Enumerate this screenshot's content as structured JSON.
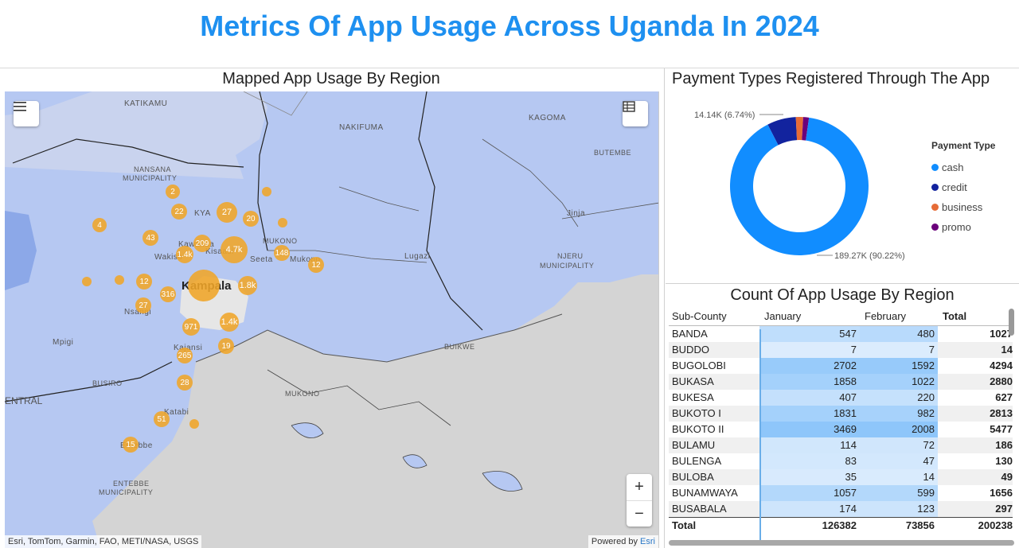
{
  "dashboard_title": "Metrics Of App Usage Across Uganda In 2024",
  "map": {
    "title": "Mapped App Usage By Region",
    "attribution": "Esri, TomTom, Garmin, FAO, METI/NASA, USGS",
    "powered_by": "Powered by",
    "powered_by_brand": "Esri",
    "zoom_in": "+",
    "zoom_out": "−",
    "labels": [
      "KATIKAMU",
      "NAKIFUMA",
      "KAGOMA",
      "BUTEMBE",
      "NANSANA",
      "MUNICIPALITY",
      "KYA",
      "Kawanda",
      "Wakiso",
      "Kisaasi",
      "Seeta",
      "MUKONO",
      "Mukono",
      "Kampala",
      "Nsangi",
      "Mpigi",
      "Kajansi",
      "Lugazi",
      "Jinja",
      "NJERU",
      "MUNICIPALITY",
      "BUIKWE",
      "BUSIRO",
      "MUKONO",
      "ENTRAL",
      "Katabi",
      "Entebbe",
      "ENTEBBE",
      "MUNICIPALITY"
    ],
    "clusters": [
      {
        "label": "2"
      },
      {
        "label": ""
      },
      {
        "label": "22"
      },
      {
        "label": "27"
      },
      {
        "label": "20"
      },
      {
        "label": ""
      },
      {
        "label": "4"
      },
      {
        "label": "43"
      },
      {
        "label": "209"
      },
      {
        "label": "4.7k"
      },
      {
        "label": "1.4k"
      },
      {
        "label": "148"
      },
      {
        "label": "12"
      },
      {
        "label": ""
      },
      {
        "label": ""
      },
      {
        "label": "12"
      },
      {
        "label": ""
      },
      {
        "label": "1.8k"
      },
      {
        "label": "316"
      },
      {
        "label": "27"
      },
      {
        "label": "1.4k"
      },
      {
        "label": "971"
      },
      {
        "label": "19"
      },
      {
        "label": "265"
      },
      {
        "label": "28"
      },
      {
        "label": "51"
      },
      {
        "label": ""
      },
      {
        "label": "15"
      }
    ]
  },
  "payment": {
    "title": "Payment Types Registered Through The App",
    "legend_title": "Payment Type",
    "label_small": "14.14K (6.74%)",
    "label_large": "189.27K (90.22%)",
    "colors": {
      "cash": "#118dff",
      "credit": "#12239e",
      "business": "#e66c37",
      "promo": "#6b007b"
    },
    "chart_data": {
      "type": "pie",
      "categories": [
        "cash",
        "credit",
        "business",
        "promo"
      ],
      "values": [
        189270,
        14140,
        3560,
        2830
      ]
    }
  },
  "table": {
    "title": "Count Of App Usage By Region",
    "headers": [
      "Sub-County",
      "January",
      "February",
      "Total"
    ],
    "rows": [
      {
        "name": "BANDA",
        "jan": "547",
        "feb": "480",
        "total": "1027"
      },
      {
        "name": "BUDDO",
        "jan": "7",
        "feb": "7",
        "total": "14"
      },
      {
        "name": "BUGOLOBI",
        "jan": "2702",
        "feb": "1592",
        "total": "4294"
      },
      {
        "name": "BUKASA",
        "jan": "1858",
        "feb": "1022",
        "total": "2880"
      },
      {
        "name": "BUKESA",
        "jan": "407",
        "feb": "220",
        "total": "627"
      },
      {
        "name": "BUKOTO I",
        "jan": "1831",
        "feb": "982",
        "total": "2813"
      },
      {
        "name": "BUKOTO II",
        "jan": "3469",
        "feb": "2008",
        "total": "5477"
      },
      {
        "name": "BULAMU",
        "jan": "114",
        "feb": "72",
        "total": "186"
      },
      {
        "name": "BULENGA",
        "jan": "83",
        "feb": "47",
        "total": "130"
      },
      {
        "name": "BULOBA",
        "jan": "35",
        "feb": "14",
        "total": "49"
      },
      {
        "name": "BUNAMWAYA",
        "jan": "1057",
        "feb": "599",
        "total": "1656"
      },
      {
        "name": "BUSABALA",
        "jan": "174",
        "feb": "123",
        "total": "297"
      }
    ],
    "total_row": {
      "name": "Total",
      "jan": "126382",
      "feb": "73856",
      "total": "200238"
    }
  }
}
